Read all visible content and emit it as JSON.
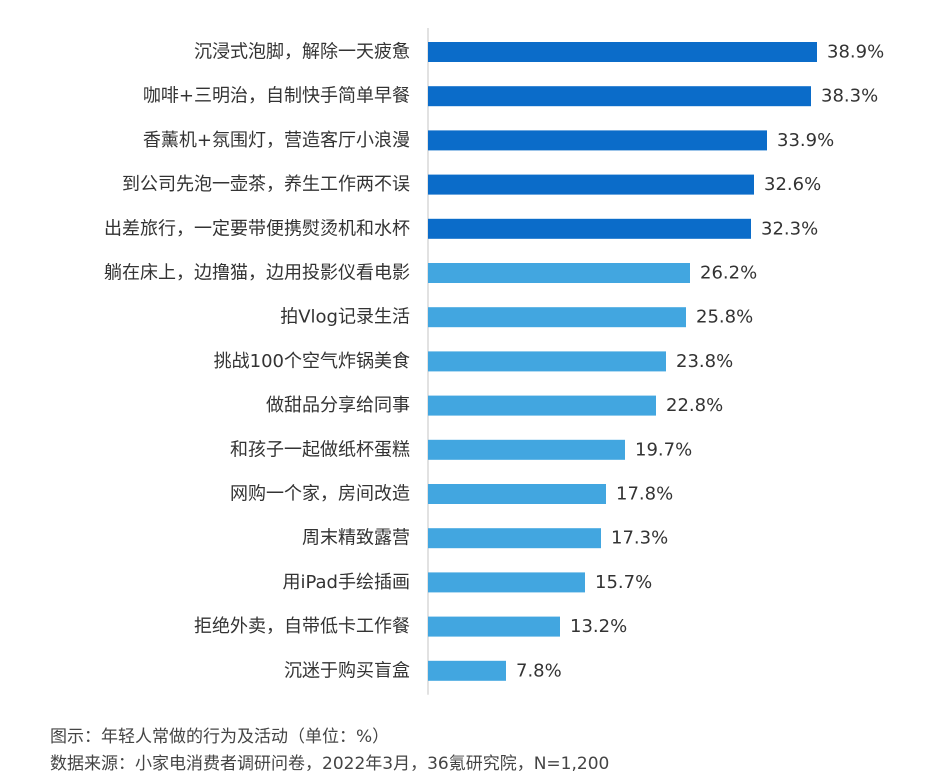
{
  "chart_data": {
    "type": "bar",
    "orientation": "horizontal",
    "categories": [
      "沉浸式泡脚，解除一天疲惫",
      "咖啡+三明治，自制快手简单早餐",
      "香薰机+氛围灯，营造客厅小浪漫",
      "到公司先泡一壶茶，养生工作两不误",
      "出差旅行，一定要带便携熨烫机和水杯",
      "躺在床上，边撸猫，边用投影仪看电影",
      "拍Vlog记录生活",
      "挑战100个空气炸锅美食",
      "做甜品分享给同事",
      "和孩子一起做纸杯蛋糕",
      "网购一个家，房间改造",
      "周末精致露营",
      "用iPad手绘插画",
      "拒绝外卖，自带低卡工作餐",
      "沉迷于购买盲盒"
    ],
    "values": [
      38.9,
      38.3,
      33.9,
      32.6,
      32.3,
      26.2,
      25.8,
      23.8,
      22.8,
      19.7,
      17.8,
      17.3,
      15.7,
      13.2,
      7.8
    ],
    "value_labels": [
      "38.9%",
      "38.3%",
      "33.9%",
      "32.6%",
      "32.3%",
      "26.2%",
      "25.8%",
      "23.8%",
      "22.8%",
      "19.7%",
      "17.8%",
      "17.3%",
      "15.7%",
      "13.2%",
      "7.8%"
    ],
    "highlight_count": 5,
    "xlim": [
      0,
      45
    ],
    "grid": false,
    "legend": "none",
    "colors": {
      "highlight": "#0b6cc9",
      "normal": "#42a6e0",
      "axis": "#d9d9d9",
      "label": "#333333"
    }
  },
  "caption": {
    "title": "图示：年轻人常做的行为及活动（单位：%）",
    "source": "数据来源：小家电消费者调研问卷，2022年3月，36氪研究院，N=1,200"
  }
}
